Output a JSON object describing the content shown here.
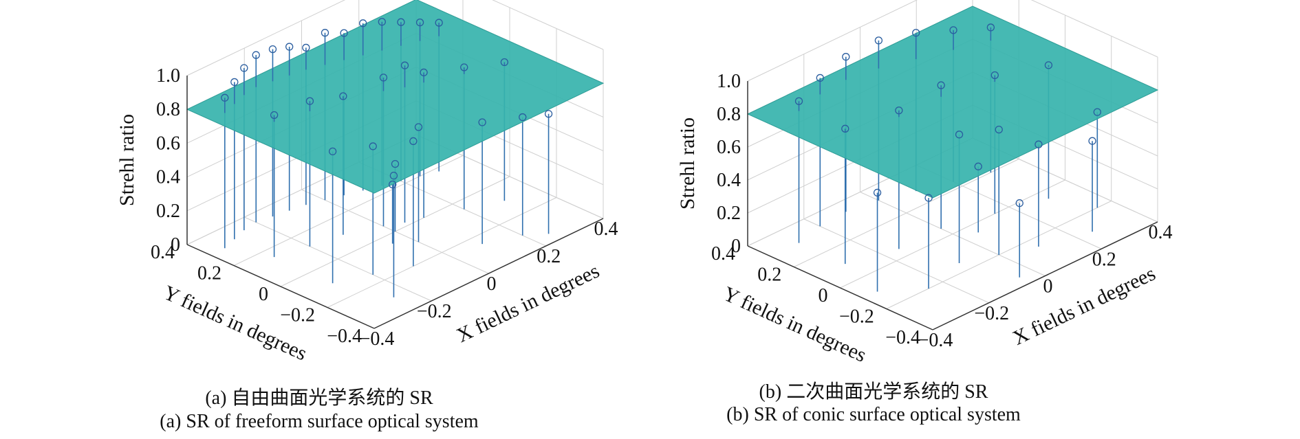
{
  "figure": {
    "panels": [
      {
        "id": "a",
        "caption_cn": "(a) 自由曲面光学系统的 SR",
        "caption_en": "(a) SR of freeform surface optical system"
      },
      {
        "id": "b",
        "caption_cn": "(b) 二次曲面光学系统的 SR",
        "caption_en": "(b) SR of conic surface optical system"
      }
    ]
  },
  "chart_data": [
    {
      "type": "scatter",
      "subtype": "3d-stem-with-plane",
      "zlabel": "Strehl ratio",
      "xlabel": "X fields in degrees",
      "ylabel": "Y fields in degrees",
      "zlim": [
        0,
        1.0
      ],
      "xlim": [
        -0.4,
        0.4
      ],
      "ylim": [
        -0.4,
        0.4
      ],
      "z_ticks": [
        "0",
        "0.2",
        "0.4",
        "0.6",
        "0.8",
        "1.0"
      ],
      "x_ticks": [
        "−0.4",
        "−0.2",
        "0",
        "0.2",
        "0.4"
      ],
      "y_ticks": [
        "−0.4",
        "−0.2",
        "0",
        "0.2",
        "0.4"
      ],
      "plane_z": 0.8,
      "plane_color": "#36b3ac",
      "stem_color": "#2f6fae",
      "marker_color": "#2a5d9f",
      "grid": true,
      "stems": [
        {
          "x": -0.35,
          "y": 0.3,
          "z": 0.89
        },
        {
          "x": -0.3,
          "y": 0.32,
          "z": 0.93
        },
        {
          "x": -0.25,
          "y": 0.34,
          "z": 0.96
        },
        {
          "x": -0.2,
          "y": 0.35,
          "z": 0.99
        },
        {
          "x": -0.15,
          "y": 0.34,
          "z": 0.99
        },
        {
          "x": -0.1,
          "y": 0.33,
          "z": 0.97
        },
        {
          "x": -0.05,
          "y": 0.32,
          "z": 0.93
        },
        {
          "x": 0.0,
          "y": 0.3,
          "z": 0.99
        },
        {
          "x": 0.05,
          "y": 0.28,
          "z": 0.96
        },
        {
          "x": 0.1,
          "y": 0.26,
          "z": 0.99
        },
        {
          "x": 0.15,
          "y": 0.24,
          "z": 0.97
        },
        {
          "x": 0.2,
          "y": 0.22,
          "z": 0.94
        },
        {
          "x": 0.25,
          "y": 0.2,
          "z": 0.91
        },
        {
          "x": 0.3,
          "y": 0.18,
          "z": 0.88
        },
        {
          "x": -0.3,
          "y": 0.15,
          "z": 0.84
        },
        {
          "x": -0.2,
          "y": 0.12,
          "z": 0.86
        },
        {
          "x": -0.1,
          "y": 0.1,
          "z": 0.82
        },
        {
          "x": 0.0,
          "y": 0.05,
          "z": 0.88
        },
        {
          "x": 0.05,
          "y": 0.02,
          "z": 0.93
        },
        {
          "x": 0.1,
          "y": 0.0,
          "z": 0.86
        },
        {
          "x": 0.2,
          "y": -0.05,
          "z": 0.84
        },
        {
          "x": 0.3,
          "y": -0.1,
          "z": 0.82
        },
        {
          "x": -0.3,
          "y": -0.1,
          "z": 0.78
        },
        {
          "x": -0.2,
          "y": -0.15,
          "z": 0.76
        },
        {
          "x": -0.1,
          "y": -0.2,
          "z": 0.74
        },
        {
          "x": 0.0,
          "y": -0.1,
          "z": 0.68
        },
        {
          "x": 0.1,
          "y": -0.25,
          "z": 0.72
        },
        {
          "x": 0.2,
          "y": -0.3,
          "z": 0.7
        },
        {
          "x": -0.25,
          "y": -0.3,
          "z": 0.72
        },
        {
          "x": 0.25,
          "y": -0.35,
          "z": 0.71
        },
        {
          "x": -0.05,
          "y": -0.05,
          "z": 0.35
        },
        {
          "x": 0.0,
          "y": 0.0,
          "z": 0.4
        }
      ]
    },
    {
      "type": "scatter",
      "subtype": "3d-stem-with-plane",
      "zlabel": "Strehl ratio",
      "xlabel": "X fields in degrees",
      "ylabel": "Y fields in degrees",
      "zlim": [
        0,
        1.0
      ],
      "xlim": [
        -0.4,
        0.4
      ],
      "ylim": [
        -0.4,
        0.4
      ],
      "z_ticks": [
        "0",
        "0.2",
        "0.4",
        "0.6",
        "0.8",
        "1.0"
      ],
      "x_ticks": [
        "−0.4",
        "−0.2",
        "0",
        "0.2",
        "0.4"
      ],
      "y_ticks": [
        "−0.4",
        "−0.2",
        "0",
        "0.2",
        "0.4"
      ],
      "plane_z": 0.8,
      "plane_color": "#36b3ac",
      "stem_color": "#2f6fae",
      "marker_color": "#2a5d9f",
      "grid": true,
      "stems": [
        {
          "x": -0.3,
          "y": 0.3,
          "z": 0.86
        },
        {
          "x": -0.2,
          "y": 0.33,
          "z": 0.9
        },
        {
          "x": -0.1,
          "y": 0.34,
          "z": 0.94
        },
        {
          "x": 0.0,
          "y": 0.32,
          "z": 0.97
        },
        {
          "x": 0.1,
          "y": 0.28,
          "z": 0.96
        },
        {
          "x": 0.2,
          "y": 0.24,
          "z": 0.92
        },
        {
          "x": 0.3,
          "y": 0.2,
          "z": 0.88
        },
        {
          "x": -0.3,
          "y": 0.1,
          "z": 0.82
        },
        {
          "x": -0.15,
          "y": 0.05,
          "z": 0.84
        },
        {
          "x": 0.0,
          "y": 0.05,
          "z": 0.87
        },
        {
          "x": 0.15,
          "y": 0.0,
          "z": 0.84
        },
        {
          "x": 0.3,
          "y": -0.05,
          "z": 0.81
        },
        {
          "x": -0.35,
          "y": -0.1,
          "z": 0.6
        },
        {
          "x": -0.25,
          "y": -0.2,
          "z": 0.55
        },
        {
          "x": -0.1,
          "y": -0.15,
          "z": 0.78
        },
        {
          "x": 0.0,
          "y": -0.2,
          "z": 0.76
        },
        {
          "x": 0.1,
          "y": -0.25,
          "z": 0.62
        },
        {
          "x": 0.25,
          "y": -0.3,
          "z": 0.55
        },
        {
          "x": 0.35,
          "y": -0.2,
          "z": 0.58
        },
        {
          "x": -0.05,
          "y": -0.35,
          "z": 0.45
        },
        {
          "x": 0.05,
          "y": -0.05,
          "z": 0.4
        }
      ]
    }
  ]
}
